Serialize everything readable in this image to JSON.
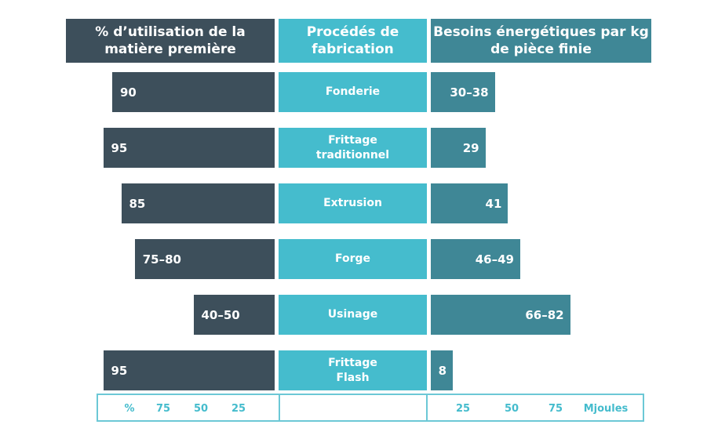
{
  "colors": {
    "left": "#3d4f5b",
    "middle": "#45bccd",
    "right": "#3f8796",
    "axis": "#45bccd"
  },
  "chart_data": {
    "type": "bar",
    "headers": {
      "left": "% d’utilisation de la matière première",
      "middle": "Procédés de fabrication",
      "right": "Besoins énergétiques par kg de pièce finie"
    },
    "categories": [
      "Fonderie",
      "Frittage traditionnel",
      "Extrusion",
      "Forge",
      "Usinage",
      "Frittage Flash"
    ],
    "series": [
      {
        "name": "% d’utilisation de la matière première",
        "labels": [
          "90",
          "95",
          "85",
          "75–80",
          "40–50",
          "95"
        ],
        "values": [
          90,
          95,
          85,
          77.5,
          45,
          95
        ]
      },
      {
        "name": "Besoins énergétiques par kg de pièce finie",
        "labels": [
          "30–38",
          "29",
          "41",
          "46–49",
          "66–82",
          "8"
        ],
        "values": [
          34,
          29,
          41,
          47.5,
          74,
          8
        ]
      }
    ],
    "left_axis": {
      "ticks": [
        "%",
        "75",
        "50",
        "25"
      ],
      "range": [
        100,
        0
      ]
    },
    "right_axis": {
      "ticks": [
        "25",
        "50",
        "75",
        "Mjoules"
      ],
      "range": [
        0,
        100
      ]
    }
  }
}
